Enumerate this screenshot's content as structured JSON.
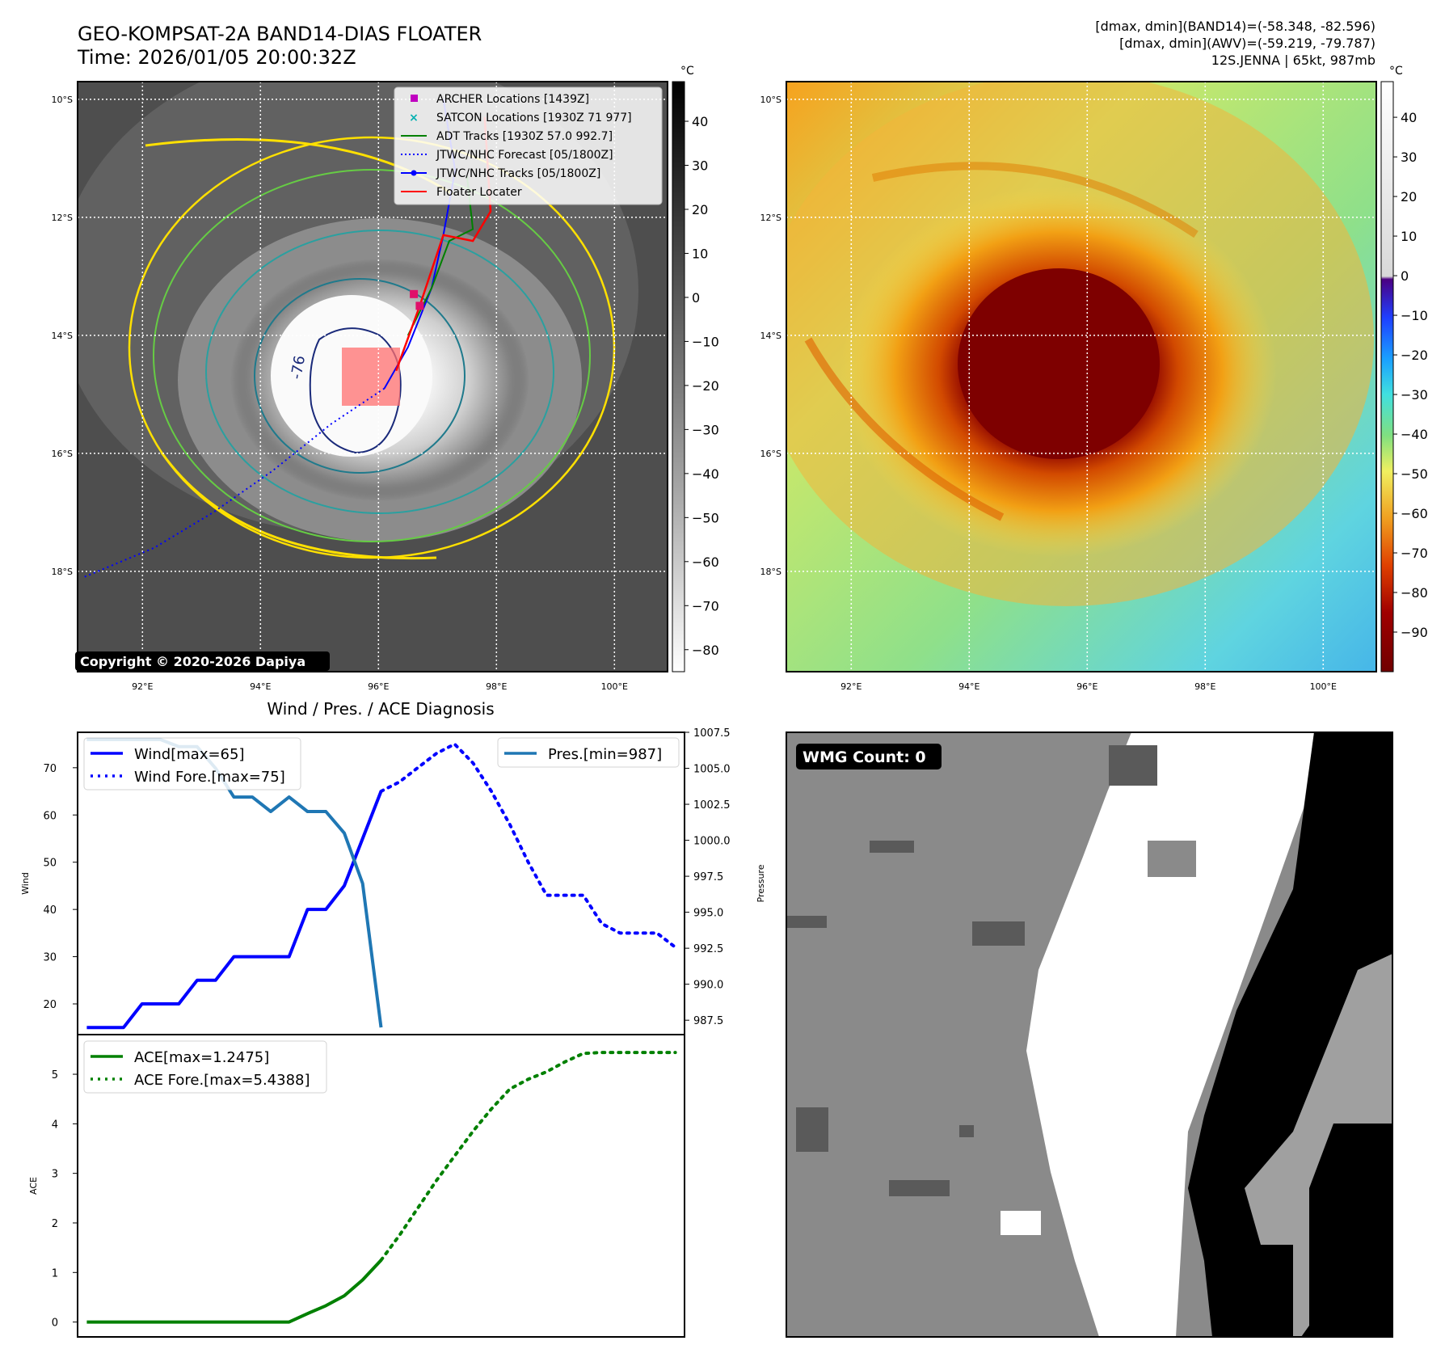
{
  "header": {
    "title_line1": "GEO-KOMPSAT-2A BAND14-DIAS FLOATER",
    "title_line2": "Time: 2026/01/05 20:00:32Z",
    "info_line1": "[dmax, dmin](BAND14)=(-58.348, -82.596)",
    "info_line2": "[dmax, dmin](AWV)=(-59.219, -79.787)",
    "info_line3": "12S.JENNA | 65kt, 987mb"
  },
  "ir_map": {
    "copyright": "Copyright © 2020-2026 Dapiya",
    "lat_labels": [
      "10°S",
      "12°S",
      "14°S",
      "16°S",
      "18°S"
    ],
    "lon_labels": [
      "92°E",
      "94°E",
      "96°E",
      "98°E",
      "100°E"
    ],
    "lat_values": [
      -10,
      -12,
      -14,
      -16,
      -18
    ],
    "lon_values": [
      92,
      94,
      96,
      98,
      100
    ],
    "lat_range": [
      -19.7,
      -9.7
    ],
    "lon_range": [
      90.9,
      100.9
    ],
    "contour_label": "-76",
    "legend": [
      {
        "label": "ARCHER Locations [1439Z]",
        "marker": "square",
        "color": "#c000c0"
      },
      {
        "label": "SATCON Locations [1930Z 71 977]",
        "marker": "x",
        "color": "#00b0b0"
      },
      {
        "label": "ADT Tracks [1930Z 57.0 992.7]",
        "marker": "line",
        "color": "#008000"
      },
      {
        "label": "JTWC/NHC Forecast [05/1800Z]",
        "marker": "dotted",
        "color": "#0000ff"
      },
      {
        "label": "JTWC/NHC Tracks [05/1800Z]",
        "marker": "line-dot",
        "color": "#0000ff"
      },
      {
        "label": "Floater Locater",
        "marker": "line",
        "color": "#ff0000"
      }
    ],
    "forecast_track": [
      [
        96.1,
        -14.9
      ],
      [
        95.2,
        -15.5
      ],
      [
        94.2,
        -16.3
      ],
      [
        93.2,
        -17.0
      ],
      [
        92.2,
        -17.6
      ],
      [
        91.0,
        -18.1
      ]
    ],
    "best_track": [
      [
        96.1,
        -14.9
      ],
      [
        96.5,
        -14.2
      ],
      [
        96.9,
        -13.2
      ],
      [
        97.1,
        -12.3
      ],
      [
        97.3,
        -11.2
      ],
      [
        97.1,
        -10.0
      ]
    ],
    "floater_track": [
      [
        96.3,
        -14.6
      ],
      [
        96.7,
        -13.5
      ],
      [
        97.1,
        -12.3
      ],
      [
        97.6,
        -12.4
      ],
      [
        97.9,
        -11.9
      ],
      [
        97.8,
        -10.3
      ]
    ],
    "adt_track": [
      [
        96.5,
        -14.0
      ],
      [
        96.9,
        -13.2
      ],
      [
        97.2,
        -12.4
      ],
      [
        97.6,
        -12.2
      ],
      [
        97.5,
        -11.3
      ]
    ],
    "archer_points": [
      [
        96.6,
        -13.3
      ],
      [
        96.7,
        -13.5
      ]
    ],
    "colorbar": {
      "unit": "°C",
      "ticks": [
        "40",
        "30",
        "20",
        "10",
        "0",
        "−10",
        "−20",
        "−30",
        "−40",
        "−50",
        "−60",
        "−70",
        "−80"
      ],
      "tick_values": [
        40,
        30,
        20,
        10,
        0,
        -10,
        -20,
        -30,
        -40,
        -50,
        -60,
        -70,
        -80
      ],
      "range": [
        -85,
        49
      ]
    }
  },
  "awv_map": {
    "lat_labels": [
      "10°S",
      "12°S",
      "14°S",
      "16°S",
      "18°S"
    ],
    "lon_labels": [
      "92°E",
      "94°E",
      "96°E",
      "98°E",
      "100°E"
    ],
    "colorbar": {
      "unit": "°C",
      "ticks": [
        "40",
        "30",
        "20",
        "10",
        "0",
        "−10",
        "−20",
        "−30",
        "−40",
        "−50",
        "−60",
        "−70",
        "−80",
        "−90"
      ],
      "tick_values": [
        40,
        30,
        20,
        10,
        0,
        -10,
        -20,
        -30,
        -40,
        -50,
        -60,
        -70,
        -80,
        -90
      ],
      "range": [
        -100,
        49
      ]
    }
  },
  "diagnosis": {
    "title": "Wind / Pres. / ACE Diagnosis",
    "wind_axis_label": "Wind",
    "pressure_axis_label": "Pressure",
    "ace_axis_label": "ACE",
    "wind_legend": [
      "Wind[max=65]",
      "Wind Fore.[max=75]"
    ],
    "pres_legend": "Pres.[min=987]",
    "ace_legend": [
      "ACE[max=1.2475]",
      "ACE Fore.[max=5.4388]"
    ],
    "wind_ticks": [
      "70",
      "60",
      "50",
      "40",
      "30",
      "20"
    ],
    "pres_ticks": [
      "1007.5",
      "1005.0",
      "1002.5",
      "1000.0",
      "997.5",
      "995.0",
      "992.5",
      "990.0",
      "987.5"
    ],
    "ace_ticks": [
      "5",
      "4",
      "3",
      "2",
      "1",
      "0"
    ]
  },
  "wmg": {
    "label": "WMG Count: 0"
  },
  "chart_data": [
    {
      "type": "line",
      "title": "Wind / Pres. / ACE Diagnosis",
      "ylabel": "Wind",
      "ylim": [
        13.5,
        77.5
      ],
      "xlim": [
        -0.5,
        32.5
      ],
      "series": [
        {
          "name": "Wind[max=65]",
          "x": [
            0,
            1,
            2,
            3,
            4,
            5,
            6,
            7,
            8,
            9,
            10,
            11,
            12,
            13,
            14,
            15,
            16
          ],
          "values": [
            15,
            15,
            15,
            20,
            20,
            20,
            25,
            25,
            30,
            30,
            30,
            30,
            40,
            40,
            45,
            55,
            65
          ]
        },
        {
          "name": "Wind Fore.[max=75]",
          "x": [
            16,
            17,
            18,
            19,
            20,
            21,
            22,
            23,
            24,
            25,
            26,
            27,
            28,
            29,
            30,
            31,
            32
          ],
          "values": [
            65,
            67,
            70,
            73,
            75,
            71,
            65,
            58,
            50,
            43,
            43,
            43,
            37,
            35,
            35,
            35,
            32
          ]
        }
      ]
    },
    {
      "type": "line",
      "ylabel": "Pressure",
      "ylim": [
        986.5,
        1007.5
      ],
      "xlim": [
        -0.5,
        32.5
      ],
      "series": [
        {
          "name": "Pres.[min=987]",
          "x": [
            0,
            1,
            2,
            3,
            4,
            5,
            6,
            7,
            8,
            9,
            10,
            11,
            12,
            13,
            14,
            15,
            16
          ],
          "values": [
            1007,
            1007,
            1007,
            1007,
            1007,
            1006.5,
            1006.5,
            1005,
            1003,
            1003,
            1002,
            1003,
            1002,
            1002,
            1000.5,
            997,
            987
          ]
        }
      ]
    },
    {
      "type": "line",
      "ylabel": "ACE",
      "ylim": [
        -0.3,
        5.8
      ],
      "xlim": [
        -0.5,
        32.5
      ],
      "series": [
        {
          "name": "ACE[max=1.2475]",
          "x": [
            0,
            1,
            2,
            3,
            4,
            5,
            6,
            7,
            8,
            9,
            10,
            11,
            12,
            13,
            14,
            15,
            16
          ],
          "values": [
            0,
            0,
            0,
            0,
            0,
            0,
            0,
            0,
            0,
            0,
            0,
            0,
            0.17,
            0.33,
            0.53,
            0.85,
            1.2475
          ]
        },
        {
          "name": "ACE Fore.[max=5.4388]",
          "x": [
            16,
            17,
            18,
            19,
            20,
            21,
            22,
            23,
            24,
            25,
            26,
            27,
            28,
            29,
            30,
            31,
            32
          ],
          "values": [
            1.2475,
            1.75,
            2.3,
            2.85,
            3.35,
            3.85,
            4.3,
            4.7,
            4.9,
            5.05,
            5.25,
            5.42,
            5.4388,
            5.4388,
            5.4388,
            5.4388,
            5.4388
          ]
        }
      ]
    }
  ]
}
